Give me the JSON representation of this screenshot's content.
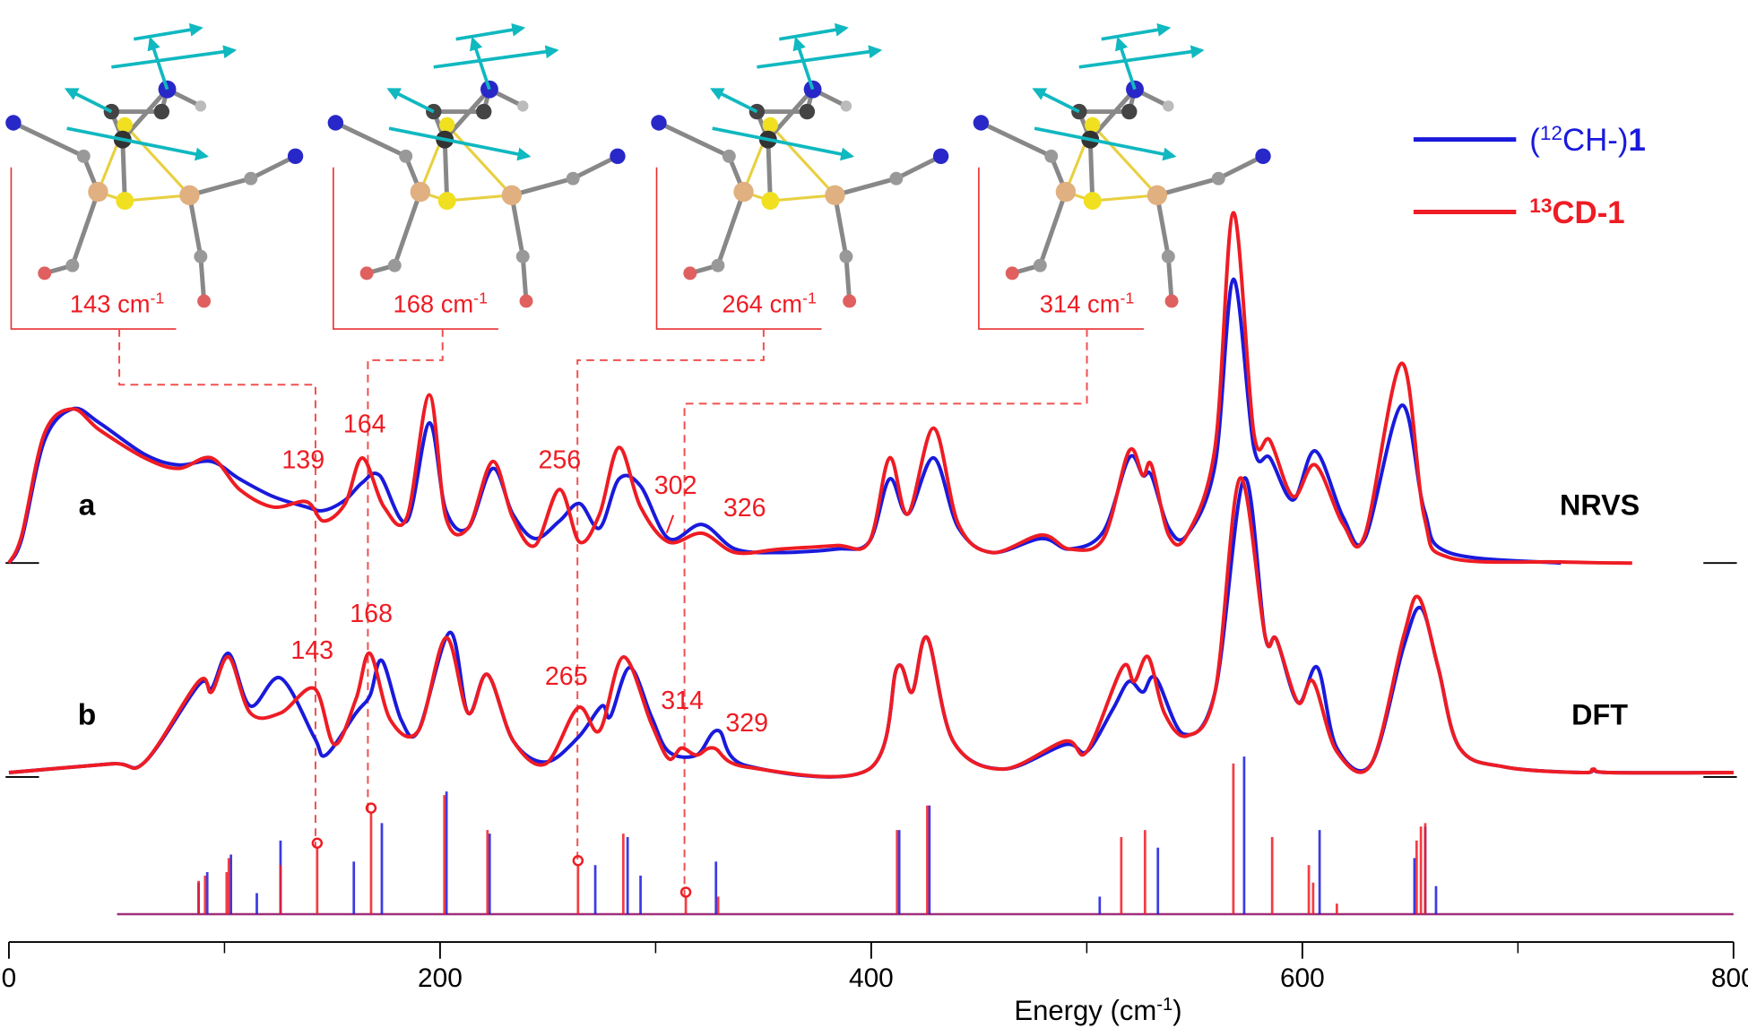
{
  "chart_data": {
    "type": "line",
    "xlim": [
      0,
      800
    ],
    "xticks": [
      0,
      200,
      400,
      600,
      800
    ],
    "xminor_ticks": [
      100,
      300,
      500,
      700
    ],
    "xlabel": [
      {
        "text": "Energy (cm",
        "style": "normal"
      },
      {
        "text": "-1",
        "style": "sup"
      },
      {
        "text": ")",
        "style": "normal"
      }
    ],
    "legend": [
      {
        "name": [
          {
            "text": "(",
            "style": "normal"
          },
          {
            "text": "12",
            "style": "sup"
          },
          {
            "text": "CH-)",
            "style": "normal"
          },
          {
            "text": "1",
            "style": "bold"
          }
        ],
        "color": "#1a1adc"
      },
      {
        "name": [
          {
            "text": "13",
            "style": "sup bold"
          },
          {
            "text": "CD-1",
            "style": "bold"
          }
        ],
        "color": "#ee1c24"
      }
    ],
    "insets": [
      {
        "label": "143 cm",
        "sup": "-1"
      },
      {
        "label": "168 cm",
        "sup": "-1"
      },
      {
        "label": "264 cm",
        "sup": "-1"
      },
      {
        "label": "314 cm",
        "sup": "-1"
      }
    ],
    "panels": [
      {
        "type": "line",
        "label": "a",
        "name": "NRVS",
        "ylim": [
          0,
          1.05
        ],
        "peak_labels": [
          139,
          164,
          256,
          302,
          326
        ],
        "series": [
          {
            "color": "#1a1adc",
            "x": [
              0,
              6,
              16.5,
              29.5,
              42,
              63,
              78.6,
              94,
              107,
              122.5,
              138,
              146,
              156,
              164,
              172,
              184.6,
              195,
              202.7,
              213,
              224.4,
              233.7,
              244,
              255.4,
              264.7,
              274,
              283,
              293,
              306,
              321.6,
              337,
              358,
              383.7,
              399,
              408.5,
              417,
              429,
              440.5,
              456,
              479,
              492,
              507.7,
              519.6,
              526,
              530,
              538,
              546.5,
              559.5,
              568,
              577.5,
              585,
              595.7,
              606,
              619,
              629,
              646,
              656.6,
              668,
              720
            ],
            "values": [
              0,
              0.07,
              0.35,
              0.44,
              0.4,
              0.31,
              0.28,
              0.29,
              0.24,
              0.19,
              0.16,
              0.15,
              0.18,
              0.23,
              0.25,
              0.12,
              0.4,
              0.15,
              0.1,
              0.27,
              0.14,
              0.07,
              0.12,
              0.17,
              0.1,
              0.24,
              0.22,
              0.07,
              0.11,
              0.04,
              0.03,
              0.04,
              0.06,
              0.24,
              0.14,
              0.3,
              0.1,
              0.03,
              0.07,
              0.04,
              0.09,
              0.3,
              0.25,
              0.25,
              0.1,
              0.08,
              0.28,
              0.81,
              0.33,
              0.3,
              0.18,
              0.32,
              0.13,
              0.07,
              0.45,
              0.15,
              0.03,
              0
            ]
          },
          {
            "color": "#ee1c24",
            "x": [
              0,
              6,
              16.5,
              29.5,
              42,
              63,
              78.6,
              94,
              107,
              122.5,
              138,
              146,
              156,
              164,
              174,
              184.6,
              195,
              202.7,
              213,
              224.4,
              233.7,
              244,
              255.4,
              264.7,
              274,
              283,
              293,
              306,
              321.6,
              337,
              358,
              383.7,
              399,
              408.5,
              417,
              429,
              440.5,
              456,
              479,
              492,
              507.7,
              519.6,
              526,
              530,
              538,
              546.5,
              559.5,
              568,
              577.5,
              585,
              595.7,
              606,
              619,
              629,
              646,
              656.6,
              668,
              720,
              753
            ],
            "values": [
              0,
              0.08,
              0.37,
              0.44,
              0.38,
              0.3,
              0.27,
              0.3,
              0.21,
              0.16,
              0.175,
              0.12,
              0.17,
              0.3,
              0.16,
              0.13,
              0.48,
              0.13,
              0.1,
              0.29,
              0.13,
              0.05,
              0.21,
              0.06,
              0.14,
              0.33,
              0.16,
              0.06,
              0.085,
              0.03,
              0.04,
              0.05,
              0.06,
              0.3,
              0.14,
              0.385,
              0.11,
              0.03,
              0.08,
              0.04,
              0.07,
              0.32,
              0.25,
              0.28,
              0.08,
              0.08,
              0.33,
              1.0,
              0.37,
              0.35,
              0.19,
              0.28,
              0.11,
              0.08,
              0.57,
              0.13,
              0.016,
              0.003,
              0
            ]
          }
        ]
      },
      {
        "type": "line",
        "label": "b",
        "name": "DFT",
        "ylim": [
          0,
          1.05
        ],
        "peak_labels": [
          143,
          168,
          265,
          314,
          329
        ],
        "series": [
          {
            "color": "#1a1adc",
            "x": [
              0,
              47.6,
              63,
              88,
              94,
              102,
              112,
              126,
              141.7,
              147,
              161,
              167.5,
              173,
              182,
              190,
              204.5,
              213,
              222,
              234,
              249,
              264,
              275,
              279,
              288,
              298,
              306,
              319,
              329,
              342,
              399,
              412,
              419,
              426,
              438,
              461,
              490,
              500,
              512,
              519.5,
              526,
              532,
              545,
              559.5,
              573,
              582.7,
              588,
              598,
              607,
              616,
              632,
              647,
              655,
              663,
              673,
              694,
              730,
              735,
              743,
              800
            ],
            "values": [
              0,
              0.025,
              0.03,
              0.25,
              0.24,
              0.34,
              0.19,
              0.27,
              0.1,
              0.05,
              0.17,
              0.22,
              0.32,
              0.15,
              0.12,
              0.4,
              0.17,
              0.28,
              0.09,
              0.03,
              0.1,
              0.19,
              0.16,
              0.3,
              0.16,
              0.06,
              0.05,
              0.12,
              0.02,
              0.01,
              0.3,
              0.23,
              0.385,
              0.09,
              0.01,
              0.08,
              0.06,
              0.18,
              0.26,
              0.23,
              0.27,
              0.11,
              0.23,
              0.84,
              0.39,
              0.38,
              0.2,
              0.3,
              0.07,
              0.025,
              0.36,
              0.47,
              0.3,
              0.07,
              0.016,
              0,
              0.008,
              0,
              0
            ]
          },
          {
            "color": "#ee1c24",
            "x": [
              0,
              47.6,
              63,
              88,
              94,
              102,
              112,
              126,
              141.7,
              151,
              161,
              167.5,
              177,
              190,
              202.7,
              213,
              222,
              234,
              249,
              264,
              274,
              285,
              298,
              306,
              312,
              319,
              327,
              342,
              399,
              412,
              419,
              426,
              438,
              461,
              490,
              500,
              516.5,
              522,
              528.5,
              536,
              546.5,
              559.5,
              571,
              582.7,
              588,
              598,
              605,
              616,
              632,
              647,
              654,
              663,
              673,
              694,
              730,
              735,
              743,
              800
            ],
            "values": [
              0,
              0.025,
              0.03,
              0.26,
              0.23,
              0.33,
              0.17,
              0.17,
              0.24,
              0.08,
              0.21,
              0.34,
              0.15,
              0.12,
              0.385,
              0.17,
              0.28,
              0.09,
              0.025,
              0.185,
              0.12,
              0.33,
              0.14,
              0.04,
              0.07,
              0.05,
              0.07,
              0.016,
              0.01,
              0.3,
              0.23,
              0.385,
              0.09,
              0.01,
              0.09,
              0.06,
              0.3,
              0.26,
              0.33,
              0.17,
              0.105,
              0.23,
              0.84,
              0.39,
              0.38,
              0.2,
              0.26,
              0.06,
              0.025,
              0.39,
              0.5,
              0.3,
              0.07,
              0.016,
              0,
              0.01,
              0,
              0
            ]
          }
        ]
      },
      {
        "type": "stem",
        "ylim": [
          0,
          1.05
        ],
        "circled_x": [
          143,
          168,
          264,
          314
        ],
        "series": [
          {
            "color": "#1a1adc",
            "x": [
              88,
              92,
              103,
              115,
              126,
              160,
              173,
              203,
              223,
              272,
              287,
              293,
              328,
              413,
              427,
              506,
              533,
              573,
              608,
              652,
              657,
              662
            ],
            "values": [
              0.09,
              0.12,
              0.17,
              0.06,
              0.21,
              0.15,
              0.26,
              0.35,
              0.23,
              0.14,
              0.22,
              0.11,
              0.15,
              0.24,
              0.31,
              0.05,
              0.19,
              0.45,
              0.24,
              0.16,
              0.25,
              0.08
            ]
          },
          {
            "color": "#ee1c24",
            "x": [
              88,
              91,
              101,
              102,
              126,
              143,
              168,
              202,
              222,
              264,
              285,
              314,
              329,
              412,
              426,
              516,
              527,
              568,
              586,
              603,
              605,
              616,
              653,
              655,
              657
            ],
            "values": [
              0.095,
              0.11,
              0.12,
              0.16,
              0.14,
              0.19,
              0.29,
              0.34,
              0.24,
              0.14,
              0.23,
              0.05,
              0.05,
              0.24,
              0.31,
              0.22,
              0.24,
              0.43,
              0.22,
              0.14,
              0.09,
              0.03,
              0.21,
              0.25,
              0.26
            ]
          }
        ]
      }
    ]
  }
}
